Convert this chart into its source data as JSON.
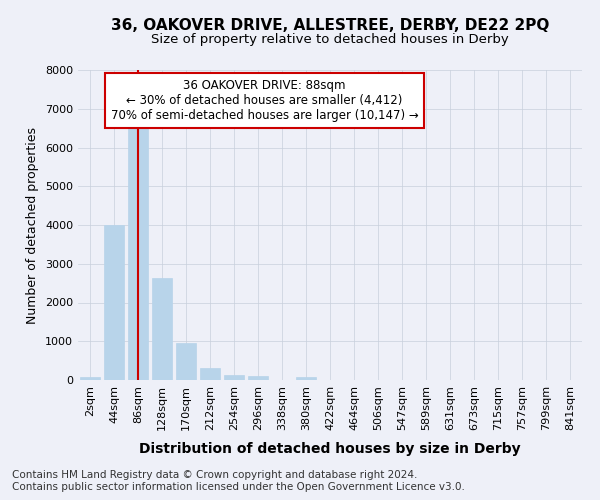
{
  "title1": "36, OAKOVER DRIVE, ALLESTREE, DERBY, DE22 2PQ",
  "title2": "Size of property relative to detached houses in Derby",
  "xlabel": "Distribution of detached houses by size in Derby",
  "ylabel": "Number of detached properties",
  "categories": [
    "2sqm",
    "44sqm",
    "86sqm",
    "128sqm",
    "170sqm",
    "212sqm",
    "254sqm",
    "296sqm",
    "338sqm",
    "380sqm",
    "422sqm",
    "464sqm",
    "506sqm",
    "547sqm",
    "589sqm",
    "631sqm",
    "673sqm",
    "715sqm",
    "757sqm",
    "799sqm",
    "841sqm"
  ],
  "values": [
    70,
    4000,
    6600,
    2620,
    960,
    310,
    130,
    105,
    0,
    80,
    0,
    0,
    0,
    0,
    0,
    0,
    0,
    0,
    0,
    0,
    0
  ],
  "bar_color": "#b8d4ea",
  "bar_edge_color": "#b8d4ea",
  "grid_color": "#c8d0dc",
  "background_color": "#eef0f8",
  "vline_color": "#cc0000",
  "vline_x": 2.0,
  "annotation_line1": "36 OAKOVER DRIVE: 88sqm",
  "annotation_line2": "← 30% of detached houses are smaller (4,412)",
  "annotation_line3": "70% of semi-detached houses are larger (10,147) →",
  "annotation_box_color": "#ffffff",
  "annotation_box_edge": "#cc0000",
  "footer": "Contains HM Land Registry data © Crown copyright and database right 2024.\nContains public sector information licensed under the Open Government Licence v3.0.",
  "ylim": [
    0,
    8000
  ],
  "yticks": [
    0,
    1000,
    2000,
    3000,
    4000,
    5000,
    6000,
    7000,
    8000
  ],
  "title1_fontsize": 11,
  "title2_fontsize": 9.5,
  "xlabel_fontsize": 10,
  "ylabel_fontsize": 9,
  "tick_fontsize": 8,
  "ann_fontsize": 8.5,
  "footer_fontsize": 7.5
}
